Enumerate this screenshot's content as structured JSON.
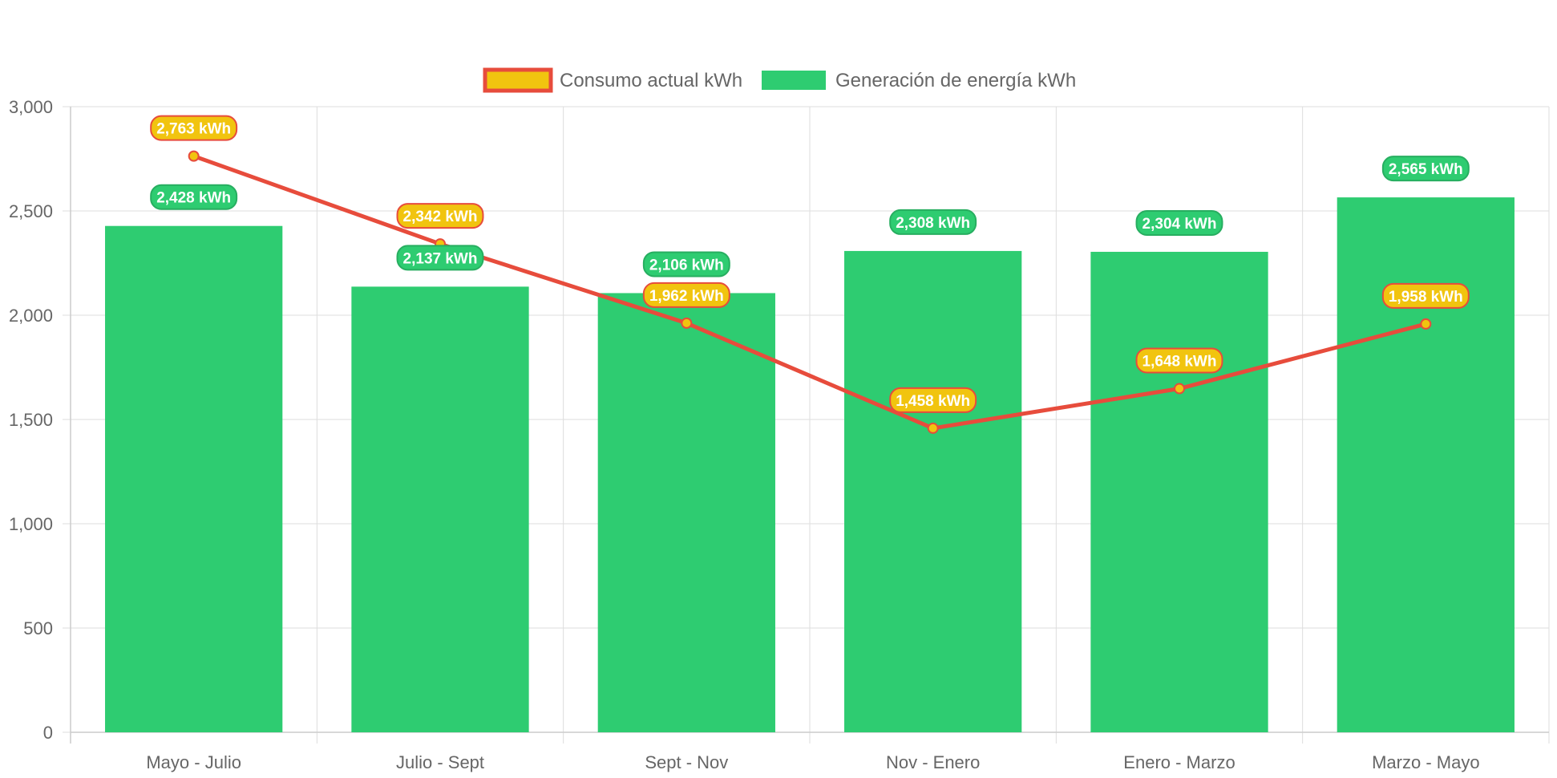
{
  "chart_data": {
    "type": "bar",
    "categories": [
      "Mayo - Julio",
      "Julio - Sept",
      "Sept - Nov",
      "Nov - Enero",
      "Enero - Marzo",
      "Marzo - Mayo"
    ],
    "series": [
      {
        "name": "Consumo actual kWh",
        "type": "line",
        "values": [
          2763,
          2342,
          1962,
          1458,
          1648,
          1958
        ],
        "data_labels": [
          "2,763 kWh",
          "2,342 kWh",
          "1,962 kWh",
          "1,458 kWh",
          "1,648 kWh",
          "1,958 kWh"
        ],
        "line_color": "#e74c3c",
        "fill_color": "#f1c40f"
      },
      {
        "name": "Generación de energía kWh",
        "type": "bar",
        "values": [
          2428,
          2137,
          2106,
          2308,
          2304,
          2565
        ],
        "data_labels": [
          "2,428 kWh",
          "2,137 kWh",
          "2,106 kWh",
          "2,308 kWh",
          "2,304 kWh",
          "2,565 kWh"
        ],
        "fill_color": "#2ecc71",
        "label_color": "#27ae60"
      }
    ],
    "ylim": [
      0,
      3000
    ],
    "yticks": [
      0,
      500,
      1000,
      1500,
      2000,
      2500,
      3000
    ],
    "ytick_labels": [
      "0",
      "500",
      "1,000",
      "1,500",
      "2,000",
      "2,500",
      "3,000"
    ],
    "grid": true,
    "legend_position": "top"
  }
}
